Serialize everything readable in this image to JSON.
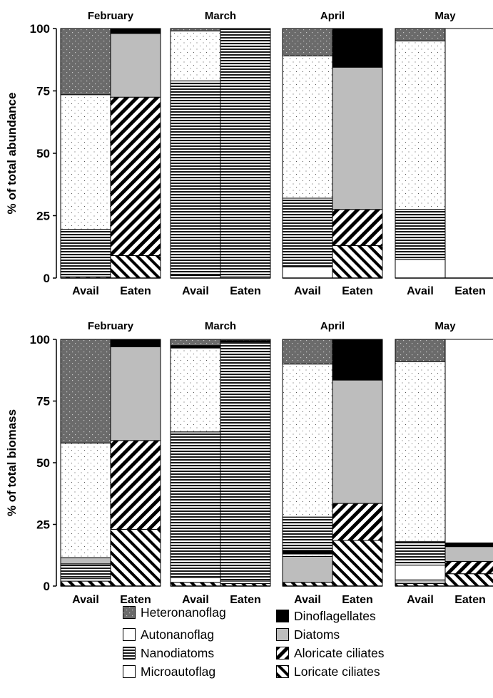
{
  "chart_data": [
    {
      "type": "bar",
      "stacked": true,
      "ylabel": "% of  total abundance",
      "ylim": [
        0,
        100
      ],
      "yticks": [
        "0",
        "25",
        "50",
        "75",
        "100"
      ],
      "panels": [
        {
          "title": "February",
          "categories": [
            "Avail",
            "Eaten"
          ],
          "series": [
            {
              "name": "Loricate ciliates",
              "values": [
                0.5,
                9
              ]
            },
            {
              "name": "Aloricate ciliates",
              "values": [
                0,
                63.5
              ]
            },
            {
              "name": "Microautoflag",
              "values": [
                0,
                0
              ]
            },
            {
              "name": "Nanodiatoms",
              "values": [
                19,
                0
              ]
            },
            {
              "name": "Diatoms",
              "values": [
                0,
                25.5
              ]
            },
            {
              "name": "Autonanoflag",
              "values": [
                54,
                0
              ]
            },
            {
              "name": "Dinoflagellates",
              "values": [
                0,
                2
              ]
            },
            {
              "name": "Heteronanoflag",
              "values": [
                26.5,
                0
              ]
            }
          ]
        },
        {
          "title": "March",
          "categories": [
            "Avail",
            "Eaten"
          ],
          "series": [
            {
              "name": "Loricate ciliates",
              "values": [
                0,
                0
              ]
            },
            {
              "name": "Aloricate ciliates",
              "values": [
                0,
                0
              ]
            },
            {
              "name": "Microautoflag",
              "values": [
                1,
                0.5
              ]
            },
            {
              "name": "Nanodiatoms",
              "values": [
                78,
                99.5
              ]
            },
            {
              "name": "Diatoms",
              "values": [
                0,
                0
              ]
            },
            {
              "name": "Autonanoflag",
              "values": [
                20,
                0
              ]
            },
            {
              "name": "Dinoflagellates",
              "values": [
                0,
                0
              ]
            },
            {
              "name": "Heteronanoflag",
              "values": [
                1,
                0
              ]
            }
          ]
        },
        {
          "title": "April",
          "categories": [
            "Avail",
            "Eaten"
          ],
          "series": [
            {
              "name": "Loricate ciliates",
              "values": [
                0,
                13
              ]
            },
            {
              "name": "Aloricate ciliates",
              "values": [
                0,
                14.5
              ]
            },
            {
              "name": "Microautoflag",
              "values": [
                4.5,
                0
              ]
            },
            {
              "name": "Nanodiatoms",
              "values": [
                27.5,
                0
              ]
            },
            {
              "name": "Diatoms",
              "values": [
                0,
                57
              ]
            },
            {
              "name": "Autonanoflag",
              "values": [
                57,
                0
              ]
            },
            {
              "name": "Dinoflagellates",
              "values": [
                0,
                15.5
              ]
            },
            {
              "name": "Heteronanoflag",
              "values": [
                11,
                0
              ]
            }
          ]
        },
        {
          "title": "May",
          "categories": [
            "Avail",
            "Eaten"
          ],
          "series": [
            {
              "name": "Loricate ciliates",
              "values": [
                0,
                0
              ]
            },
            {
              "name": "Aloricate ciliates",
              "values": [
                0,
                0
              ]
            },
            {
              "name": "Microautoflag",
              "values": [
                7.5,
                100
              ]
            },
            {
              "name": "Nanodiatoms",
              "values": [
                20,
                0
              ]
            },
            {
              "name": "Diatoms",
              "values": [
                0,
                0
              ]
            },
            {
              "name": "Autonanoflag",
              "values": [
                67.5,
                0
              ]
            },
            {
              "name": "Dinoflagellates",
              "values": [
                0,
                0
              ]
            },
            {
              "name": "Heteronanoflag",
              "values": [
                5,
                0
              ]
            }
          ]
        }
      ]
    },
    {
      "type": "bar",
      "stacked": true,
      "ylabel": "% of  total  biomass",
      "ylim": [
        0,
        100
      ],
      "yticks": [
        "0",
        "25",
        "50",
        "75",
        "100"
      ],
      "panels": [
        {
          "title": "February",
          "categories": [
            "Avail",
            "Eaten"
          ],
          "series": [
            {
              "name": "Loricate ciliates",
              "values": [
                2,
                23
              ]
            },
            {
              "name": "Aloricate ciliates",
              "values": [
                0,
                36
              ]
            },
            {
              "name": "Microautoflag",
              "values": [
                1,
                0
              ]
            },
            {
              "name": "Nanodiatoms",
              "values": [
                6,
                0
              ]
            },
            {
              "name": "Diatoms",
              "values": [
                2.5,
                38
              ]
            },
            {
              "name": "Autonanoflag",
              "values": [
                46.5,
                0
              ]
            },
            {
              "name": "Dinoflagellates",
              "values": [
                0,
                3
              ]
            },
            {
              "name": "Heteronanoflag",
              "values": [
                42,
                0
              ]
            }
          ]
        },
        {
          "title": "March",
          "categories": [
            "Avail",
            "Eaten"
          ],
          "series": [
            {
              "name": "Loricate ciliates",
              "values": [
                1.5,
                1
              ]
            },
            {
              "name": "Aloricate ciliates",
              "values": [
                0,
                0
              ]
            },
            {
              "name": "Microautoflag",
              "values": [
                2,
                1
              ]
            },
            {
              "name": "Nanodiatoms",
              "values": [
                59,
                97
              ]
            },
            {
              "name": "Diatoms",
              "values": [
                0,
                0
              ]
            },
            {
              "name": "Autonanoflag",
              "values": [
                34,
                0
              ]
            },
            {
              "name": "Dinoflagellates",
              "values": [
                1,
                0.5
              ]
            },
            {
              "name": "Heteronanoflag",
              "values": [
                2.5,
                0.5
              ]
            }
          ]
        },
        {
          "title": "April",
          "categories": [
            "Avail",
            "Eaten"
          ],
          "series": [
            {
              "name": "Loricate ciliates",
              "values": [
                1.5,
                18.5
              ]
            },
            {
              "name": "Aloricate ciliates",
              "values": [
                0,
                15
              ]
            },
            {
              "name": "Microautoflag",
              "values": [
                0,
                0
              ]
            },
            {
              "name": "Diatoms",
              "values": [
                10.5,
                50
              ]
            },
            {
              "name": "Autonanoflag",
              "values": [
                1,
                0
              ]
            },
            {
              "name": "Dinoflagellates",
              "values": [
                1.5,
                0
              ]
            },
            {
              "name": "Nanodiatoms",
              "values": [
                13.5,
                0
              ]
            },
            {
              "name": "Autonanoflag",
              "values": [
                62,
                0
              ]
            },
            {
              "name": "Dinoflagellates",
              "values": [
                0,
                16.5
              ]
            },
            {
              "name": "Heteronanoflag",
              "values": [
                10,
                0
              ]
            }
          ]
        },
        {
          "title": "May",
          "categories": [
            "Avail",
            "Eaten"
          ],
          "series": [
            {
              "name": "Loricate ciliates",
              "values": [
                1,
                5
              ]
            },
            {
              "name": "Aloricate ciliates",
              "values": [
                0,
                5
              ]
            },
            {
              "name": "Diatoms",
              "values": [
                1.5,
                6
              ]
            },
            {
              "name": "Microautoflag",
              "values": [
                6,
                0
              ]
            },
            {
              "name": "Nanodiatoms",
              "values": [
                9.5,
                0
              ]
            },
            {
              "name": "Autonanoflag",
              "values": [
                73,
                0
              ]
            },
            {
              "name": "Dinoflagellates",
              "values": [
                0,
                1.5
              ]
            },
            {
              "name": "Heteronanoflag",
              "values": [
                9,
                0
              ]
            },
            {
              "name": "Microautoflag",
              "values": [
                0,
                82.5
              ]
            }
          ]
        }
      ]
    }
  ],
  "legend": [
    {
      "name": "Heteronanoflag"
    },
    {
      "name": "Autonanoflag"
    },
    {
      "name": "Nanodiatoms"
    },
    {
      "name": "Microautoflag"
    },
    {
      "name": "Dinoflagellates"
    },
    {
      "name": "Diatoms"
    },
    {
      "name": "Aloricate ciliates"
    },
    {
      "name": "Loricate ciliates"
    }
  ]
}
